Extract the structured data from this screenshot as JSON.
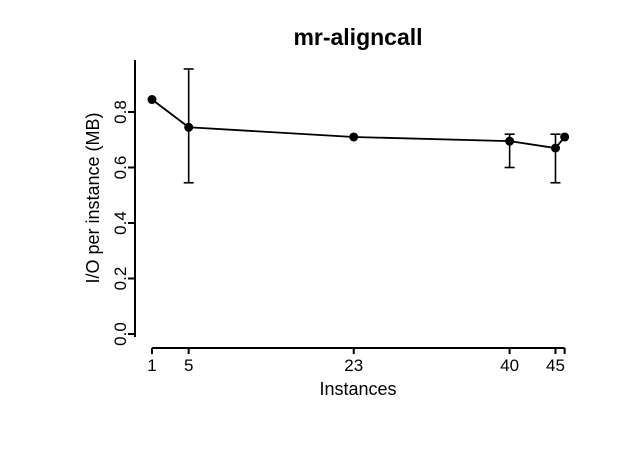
{
  "colors": {
    "foreground": "#000000",
    "background": "#ffffff"
  },
  "chart_data": {
    "type": "line",
    "title": "mr-aligncall",
    "xlabel": "Instances",
    "ylabel": "I/O per instance (MB)",
    "xlim": [
      1,
      46
    ],
    "ylim": [
      0.0,
      0.95
    ],
    "grid": false,
    "legend": "none",
    "x_ticks": [
      {
        "value": 1,
        "label": "1"
      },
      {
        "value": 5,
        "label": "5"
      },
      {
        "value": 23,
        "label": "23"
      },
      {
        "value": 40,
        "label": "40"
      },
      {
        "value": 45,
        "label": "45"
      },
      {
        "value": 46,
        "label": ""
      }
    ],
    "y_ticks": [
      {
        "value": 0.0,
        "label": "0.0"
      },
      {
        "value": 0.2,
        "label": "0.2"
      },
      {
        "value": 0.4,
        "label": "0.4"
      },
      {
        "value": 0.6,
        "label": "0.6"
      },
      {
        "value": 0.8,
        "label": "0.8"
      }
    ],
    "series": [
      {
        "name": "mr-aligncall",
        "marker": "filled-circle",
        "x": [
          1,
          5,
          23,
          40,
          45,
          46
        ],
        "y": [
          0.845,
          0.745,
          0.71,
          0.695,
          0.67,
          0.71
        ],
        "err_low": [
          null,
          0.545,
          null,
          0.6,
          0.545,
          null
        ],
        "err_high": [
          null,
          0.955,
          null,
          0.72,
          0.72,
          null
        ]
      }
    ]
  }
}
